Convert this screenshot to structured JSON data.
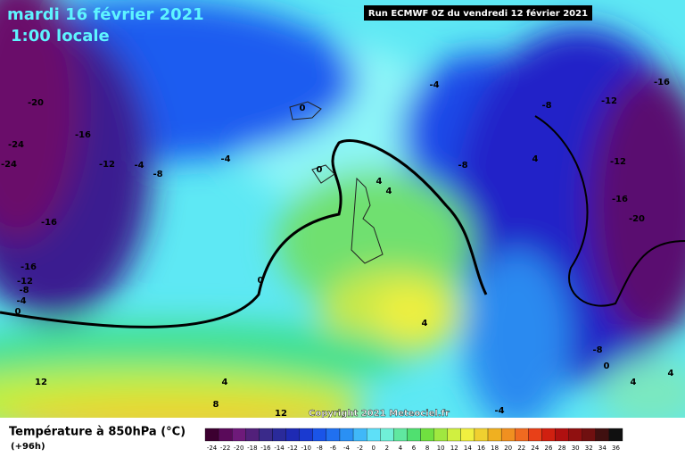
{
  "header": {
    "date": "mardi 16 février 2021",
    "time": "1:00 locale",
    "run": "Run ECMWF 0Z du vendredi 12 février 2021"
  },
  "copyright": "Copyright 2021 Meteociel.fr",
  "legend": {
    "title": "Température à 850hPa (°C)",
    "lead": "(+96h)",
    "scale": [
      -24,
      -22,
      -20,
      -18,
      -16,
      -14,
      -12,
      -10,
      -8,
      -6,
      -4,
      -2,
      0,
      2,
      4,
      6,
      8,
      10,
      12,
      14,
      16,
      18,
      20,
      22,
      24,
      26,
      28,
      30,
      32,
      34,
      36
    ]
  },
  "contour_labels": [
    -20,
    -16,
    -24,
    -24,
    -12,
    -4,
    -8,
    -4,
    0,
    0,
    -4,
    -16,
    -12,
    -8,
    -8,
    4,
    -12,
    -16,
    -20,
    4,
    4,
    -16,
    -16,
    -12,
    -8,
    -4,
    0,
    0,
    4,
    -8,
    0,
    4,
    4,
    12,
    4,
    8,
    12,
    -4
  ]
}
